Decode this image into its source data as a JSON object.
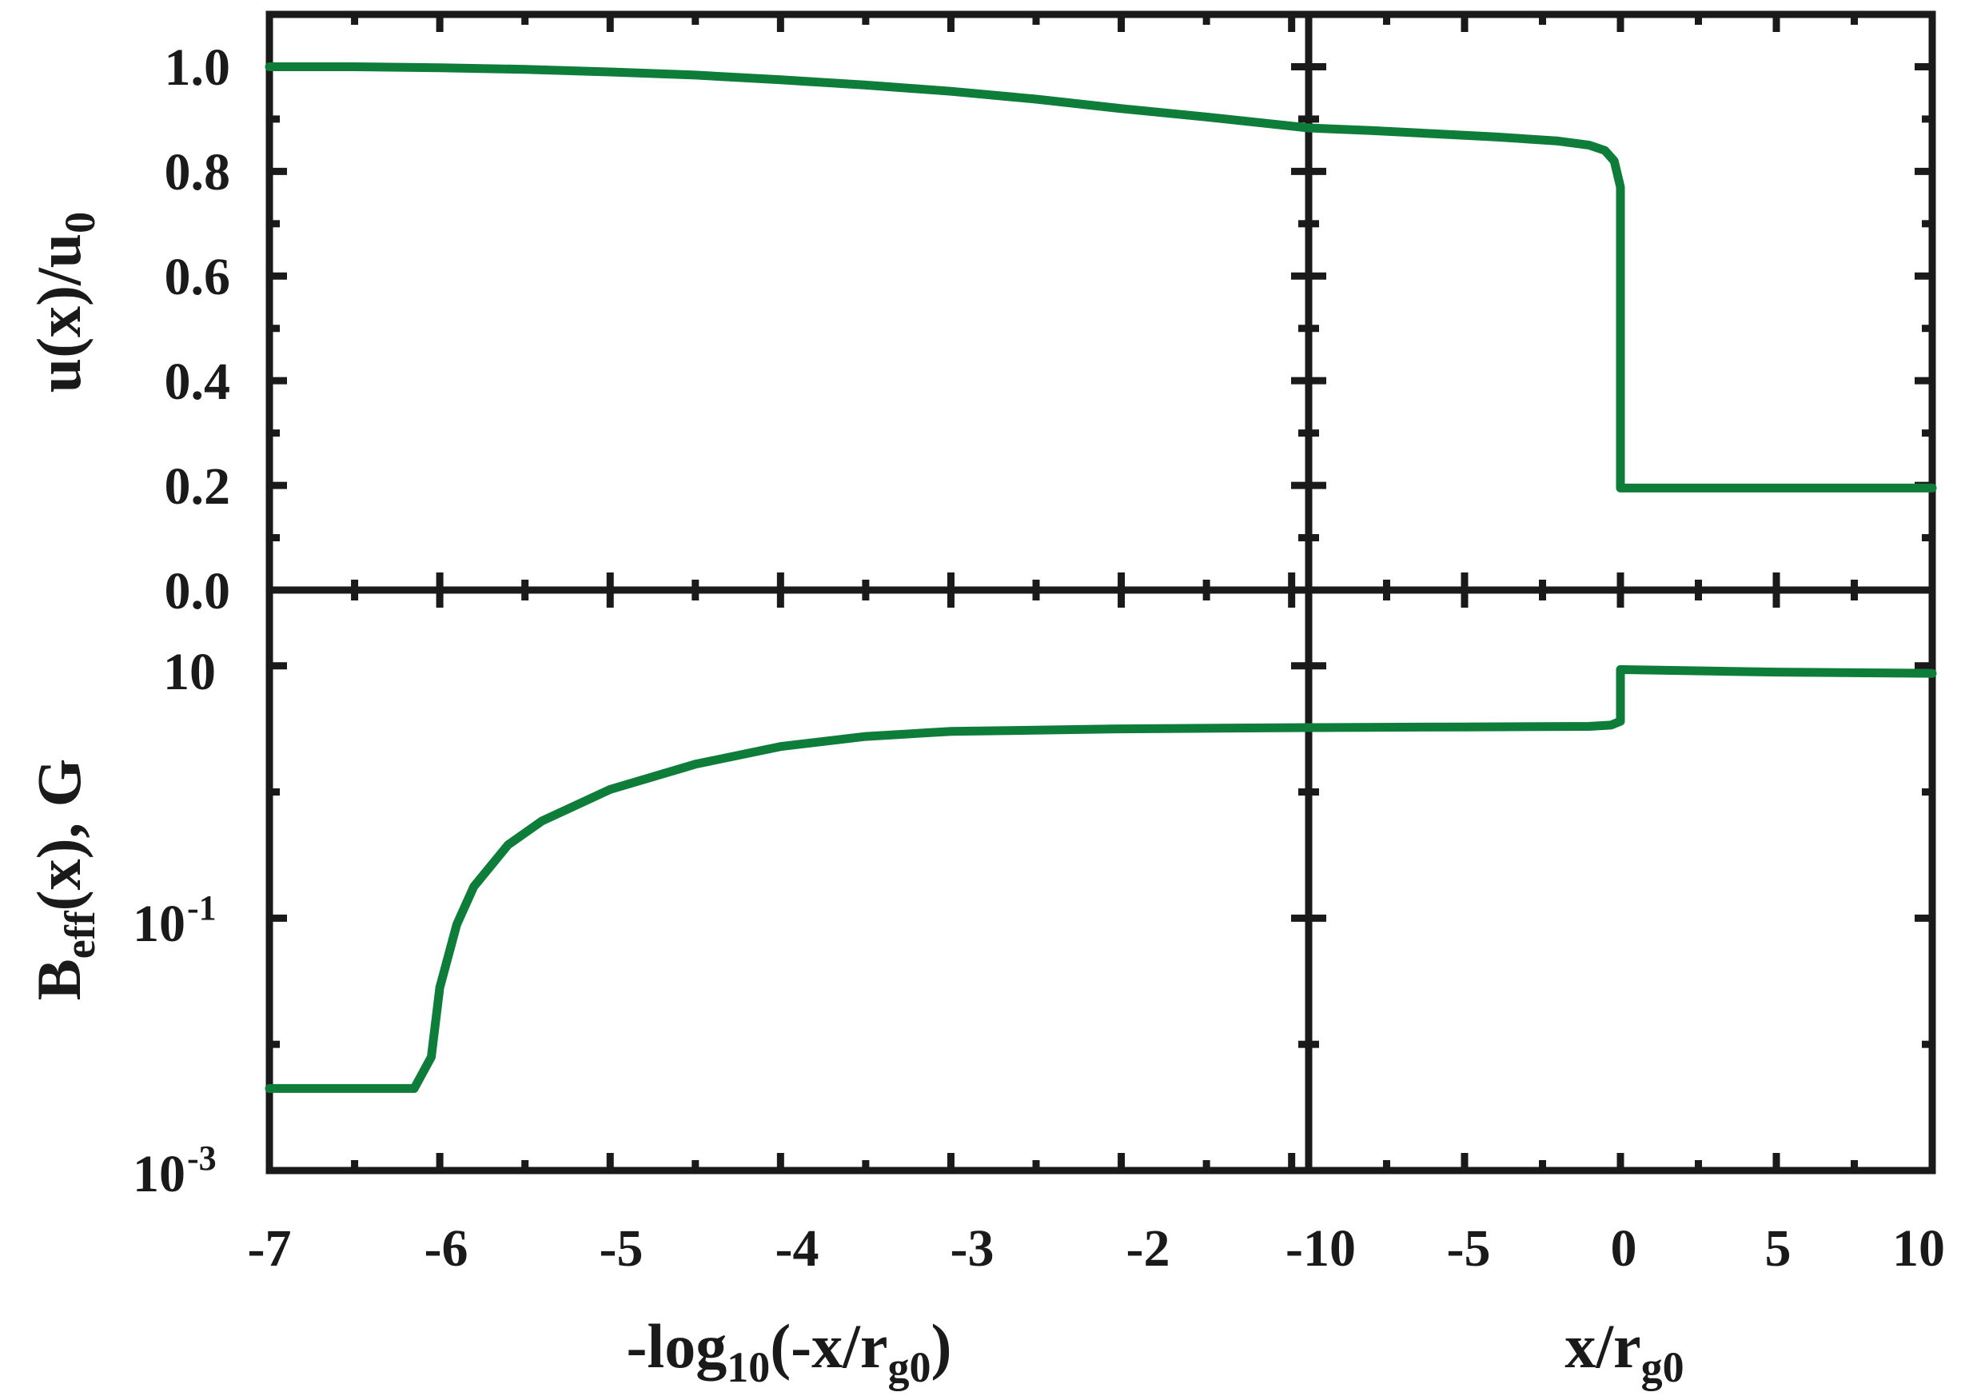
{
  "chart_data": [
    {
      "panel": "top-left",
      "type": "line",
      "ylabel": "u(x)/u",
      "ylabel_sub": "0",
      "xlim": [
        -7,
        -0.9
      ],
      "ylim": [
        0,
        1.1
      ],
      "y_ticks": [
        "0.0",
        "0.2",
        "0.4",
        "0.6",
        "0.8",
        "1.0"
      ],
      "series": [
        {
          "color": "#0e7d3a",
          "x": [
            -7,
            -6.5,
            -6,
            -5.5,
            -5,
            -4.5,
            -4,
            -3.5,
            -3,
            -2.5,
            -2,
            -1.5,
            -0.9
          ],
          "y": [
            1.0,
            1.0,
            0.998,
            0.995,
            0.99,
            0.984,
            0.975,
            0.965,
            0.953,
            0.938,
            0.92,
            0.904,
            0.883
          ]
        }
      ]
    },
    {
      "panel": "top-right",
      "type": "line",
      "xlim": [
        -10,
        10
      ],
      "ylim": [
        0,
        1.1
      ],
      "series": [
        {
          "color": "#0e7d3a",
          "x": [
            -10,
            -8,
            -6,
            -4,
            -2,
            -1,
            -0.5,
            -0.2,
            0,
            0,
            2,
            5,
            10
          ],
          "y": [
            0.883,
            0.878,
            0.872,
            0.866,
            0.858,
            0.85,
            0.84,
            0.82,
            0.77,
            0.195,
            0.195,
            0.195,
            0.195
          ]
        }
      ]
    },
    {
      "panel": "bottom-left",
      "type": "line",
      "ylabel": "B",
      "ylabel_sub": "eff",
      "ylabel_rest": "(x), G",
      "xlabel": "-log",
      "xlabel_sub": "10",
      "xlabel_mid": "(-x/r",
      "xlabel_sub2": "g0",
      "xlabel_end": ")",
      "xlim": [
        -7,
        -0.9
      ],
      "ylim": [
        -3,
        1.6
      ],
      "y_scale": "log",
      "y_ticks": [
        {
          "base": "10",
          "exp": "-3",
          "value": -3
        },
        {
          "base": "10",
          "exp": "-1",
          "value": -1
        },
        {
          "base": "10",
          "exp": "",
          "value": 1
        }
      ],
      "x_ticks": [
        "-7",
        "-6",
        "-5",
        "-4",
        "-3",
        "-2"
      ],
      "series": [
        {
          "color": "#0e7d3a",
          "x": [
            -7,
            -6.15,
            -6.05,
            -6.0,
            -5.9,
            -5.8,
            -5.6,
            -5.4,
            -5.0,
            -4.5,
            -4.0,
            -3.5,
            -3.0,
            -2.0,
            -0.9
          ],
          "y": [
            -2.35,
            -2.35,
            -2.1,
            -1.55,
            -1.05,
            -0.75,
            -0.42,
            -0.23,
            0.02,
            0.22,
            0.36,
            0.44,
            0.48,
            0.5,
            0.51
          ]
        }
      ]
    },
    {
      "panel": "bottom-right",
      "type": "line",
      "xlabel": "x/r",
      "xlabel_sub": "g0",
      "xlim": [
        -10,
        10
      ],
      "ylim": [
        -3,
        1.6
      ],
      "y_scale": "log",
      "x_ticks": [
        "-10",
        "-5",
        "0",
        "5",
        "10"
      ],
      "series": [
        {
          "color": "#0e7d3a",
          "x": [
            -10,
            -5,
            -1,
            -0.3,
            0,
            0,
            5,
            10
          ],
          "y": [
            0.51,
            0.515,
            0.52,
            0.53,
            0.56,
            0.97,
            0.95,
            0.94
          ]
        }
      ]
    }
  ]
}
